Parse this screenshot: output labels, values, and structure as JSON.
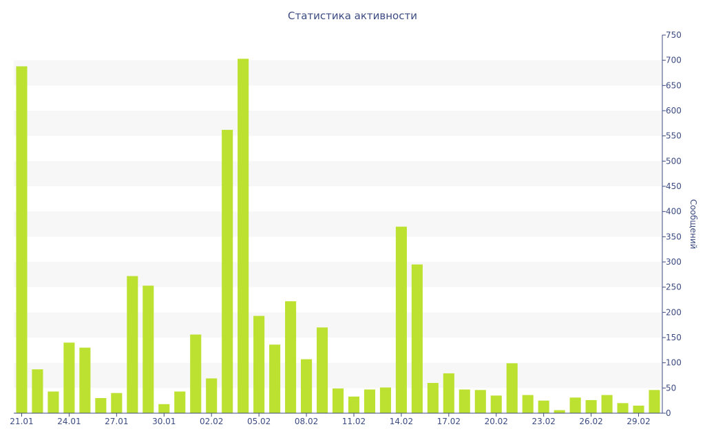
{
  "chart_data": {
    "type": "bar",
    "title": "Статистика активности",
    "xlabel": "",
    "ylabel": "Сообщений",
    "ylim": [
      0,
      750
    ],
    "y_axis_position": "right",
    "yticks": [
      0,
      50,
      100,
      150,
      200,
      250,
      300,
      350,
      400,
      450,
      500,
      550,
      600,
      650,
      700,
      750
    ],
    "grid": "horizontal alternating bands",
    "legend": "none",
    "categories": [
      "21.01",
      "22.01",
      "23.01",
      "24.01",
      "25.01",
      "26.01",
      "27.01",
      "28.01",
      "29.01",
      "30.01",
      "31.01",
      "01.02",
      "02.02",
      "03.02",
      "04.02",
      "05.02",
      "06.02",
      "07.02",
      "08.02",
      "09.02",
      "10.02",
      "11.02",
      "12.02",
      "13.02",
      "14.02",
      "15.02",
      "16.02",
      "17.02",
      "18.02",
      "19.02",
      "20.02",
      "21.02",
      "22.02",
      "23.02",
      "24.02",
      "25.02",
      "26.02",
      "27.02",
      "28.02",
      "29.02",
      "01.03"
    ],
    "xtick_labels": [
      "21.01",
      "24.01",
      "27.01",
      "30.01",
      "02.02",
      "05.02",
      "08.02",
      "11.02",
      "14.02",
      "17.02",
      "20.02",
      "23.02",
      "26.02",
      "29.02"
    ],
    "values": [
      688,
      87,
      43,
      140,
      130,
      30,
      40,
      272,
      253,
      18,
      43,
      156,
      69,
      562,
      703,
      193,
      136,
      222,
      107,
      170,
      49,
      33,
      47,
      51,
      370,
      295,
      60,
      79,
      47,
      46,
      35,
      99,
      36,
      25,
      6,
      31,
      26,
      36,
      20,
      15,
      46
    ]
  },
  "colors": {
    "bar": "#bde131",
    "axis": "#3b4b82",
    "band": "#f7f7f7"
  }
}
